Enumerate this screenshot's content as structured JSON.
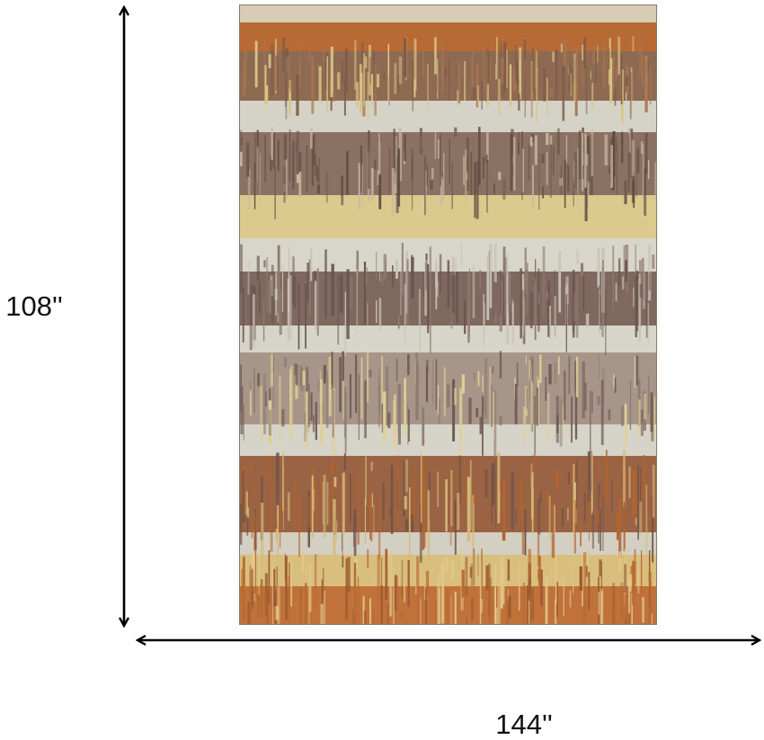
{
  "dimensions": {
    "height": "108''",
    "width": "144''"
  }
}
